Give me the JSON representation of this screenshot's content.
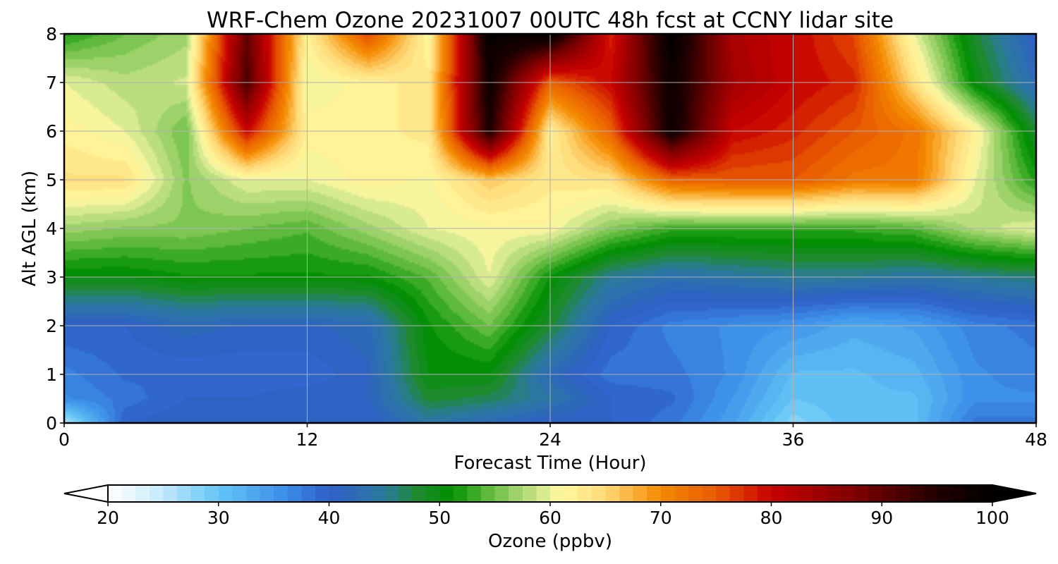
{
  "chart_data": {
    "type": "heatmap",
    "title": "WRF-Chem Ozone  20231007 00UTC 48h fcst at CCNY lidar site",
    "xlabel": "Forecast Time (Hour)",
    "ylabel": "Alt AGL (km)",
    "xlim": [
      0,
      48
    ],
    "ylim": [
      0,
      8
    ],
    "xticks": [
      "0",
      "12",
      "24",
      "36",
      "48"
    ],
    "yticks": [
      "0",
      "1",
      "2",
      "3",
      "4",
      "5",
      "6",
      "7",
      "8"
    ],
    "grid": true,
    "colorbar": {
      "label": "Ozone  (ppbv)",
      "range": [
        20,
        100
      ],
      "ticks": [
        "20",
        "30",
        "40",
        "50",
        "60",
        "70",
        "80",
        "90",
        "100"
      ],
      "extend": "both",
      "colors": [
        {
          "v": 20,
          "c": "#ffffff"
        },
        {
          "v": 24,
          "c": "#d2eefc"
        },
        {
          "v": 30,
          "c": "#63c6f7"
        },
        {
          "v": 36,
          "c": "#3d8ee8"
        },
        {
          "v": 40,
          "c": "#2e5fc8"
        },
        {
          "v": 45,
          "c": "#2a7a9c"
        },
        {
          "v": 48,
          "c": "#1e8a30"
        },
        {
          "v": 51,
          "c": "#009000"
        },
        {
          "v": 55,
          "c": "#6fc048"
        },
        {
          "v": 59,
          "c": "#cfe68f"
        },
        {
          "v": 61,
          "c": "#fff9a0"
        },
        {
          "v": 65,
          "c": "#ffd978"
        },
        {
          "v": 70,
          "c": "#f58a00"
        },
        {
          "v": 75,
          "c": "#e85a00"
        },
        {
          "v": 80,
          "c": "#c80000"
        },
        {
          "v": 88,
          "c": "#7a0000"
        },
        {
          "v": 95,
          "c": "#200000"
        },
        {
          "v": 100,
          "c": "#000000"
        }
      ],
      "under_color": "#ffffff",
      "over_color": "#000000"
    },
    "hours": [
      0,
      3,
      6,
      9,
      12,
      15,
      18,
      21,
      24,
      27,
      30,
      33,
      36,
      39,
      42,
      45,
      48
    ],
    "altitudes_km": [
      0,
      0.5,
      1,
      2,
      3,
      4,
      5,
      6,
      7,
      8
    ],
    "ozone_ppbv": [
      [
        25,
        40,
        41,
        41,
        40,
        40,
        44,
        42,
        40,
        40,
        38,
        34,
        28,
        31,
        31,
        38,
        38
      ],
      [
        36,
        38,
        40,
        40,
        41,
        41,
        48,
        47,
        44,
        40,
        39,
        35,
        30,
        31,
        31,
        36,
        36
      ],
      [
        37,
        39,
        39,
        39,
        39,
        41,
        50,
        50,
        42,
        38,
        38,
        36,
        31,
        31,
        32,
        36,
        37
      ],
      [
        40,
        40,
        42,
        41,
        41,
        42,
        51,
        55,
        48,
        40,
        37,
        36,
        35,
        33,
        34,
        37,
        38
      ],
      [
        50,
        50,
        51,
        51,
        51,
        51,
        54,
        60,
        51,
        45,
        43,
        44,
        45,
        45,
        44,
        45,
        46
      ],
      [
        57,
        56,
        56,
        55,
        54,
        57,
        60,
        61,
        61,
        56,
        53,
        53,
        53,
        53,
        54,
        58,
        60
      ],
      [
        64,
        64,
        56,
        60,
        60,
        62,
        61,
        66,
        63,
        64,
        74,
        75,
        75,
        72,
        72,
        60,
        52
      ],
      [
        62,
        60,
        55,
        80,
        62,
        62,
        63,
        96,
        62,
        74,
        98,
        80,
        78,
        75,
        72,
        62,
        48
      ],
      [
        60,
        58,
        59,
        92,
        60,
        62,
        63,
        98,
        74,
        80,
        98,
        84,
        80,
        78,
        64,
        50,
        42
      ],
      [
        52,
        55,
        57,
        90,
        62,
        76,
        61,
        99,
        100,
        78,
        100,
        83,
        80,
        76,
        60,
        48,
        40
      ]
    ]
  }
}
